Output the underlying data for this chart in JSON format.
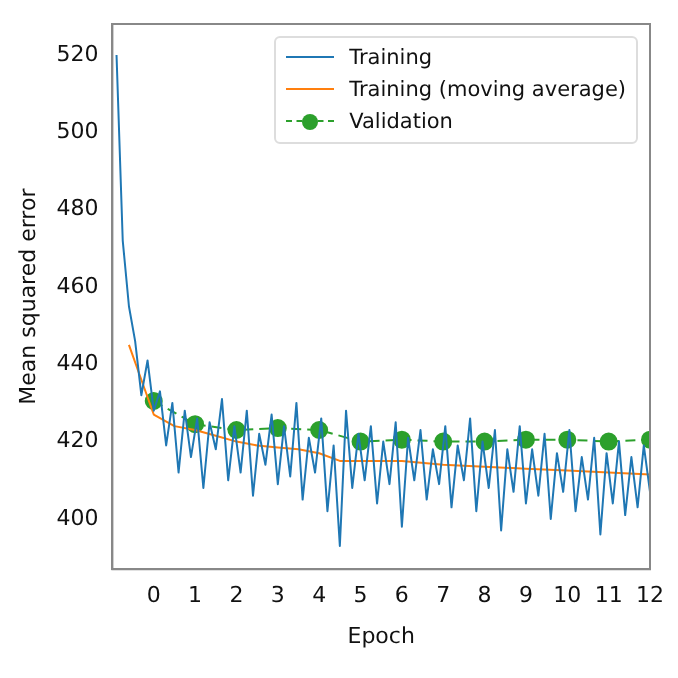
{
  "chart_data": {
    "type": "line",
    "xlabel": "Epoch",
    "ylabel": "Mean squared error",
    "xlim": [
      -1,
      12
    ],
    "xticks": [
      0,
      1,
      2,
      3,
      4,
      5,
      6,
      7,
      8,
      9,
      10,
      11,
      12
    ],
    "ylim": [
      387,
      528
    ],
    "yticks": [
      400,
      420,
      440,
      460,
      480,
      500,
      520
    ],
    "grid": false,
    "legend": "top right",
    "series": [
      {
        "name": "Training",
        "color": "#1f77b4",
        "marker": "none",
        "line_style": "solid",
        "x": [
          -0.9,
          -0.75,
          -0.6,
          -0.45,
          -0.3,
          -0.15,
          0,
          0.15,
          0.3,
          0.45,
          0.6,
          0.75,
          0.9,
          1.05,
          1.2,
          1.35,
          1.5,
          1.65,
          1.8,
          1.95,
          2.1,
          2.25,
          2.4,
          2.55,
          2.7,
          2.85,
          3.0,
          3.15,
          3.3,
          3.45,
          3.6,
          3.75,
          3.9,
          4.05,
          4.2,
          4.35,
          4.5,
          4.65,
          4.8,
          4.95,
          5.1,
          5.25,
          5.4,
          5.55,
          5.7,
          5.85,
          6.0,
          6.15,
          6.3,
          6.45,
          6.6,
          6.75,
          6.9,
          7.05,
          7.2,
          7.35,
          7.5,
          7.65,
          7.8,
          7.95,
          8.1,
          8.25,
          8.4,
          8.55,
          8.7,
          8.85,
          9.0,
          9.15,
          9.3,
          9.45,
          9.6,
          9.75,
          9.9,
          10.05,
          10.2,
          10.35,
          10.5,
          10.65,
          10.8,
          10.95,
          11.1,
          11.25,
          11.4,
          11.55,
          11.7,
          11.85,
          12.0
        ],
        "values": [
          520,
          472,
          455,
          446,
          432,
          441,
          428,
          433,
          419,
          430,
          412,
          428,
          416,
          426,
          408,
          425,
          418,
          431,
          410,
          424,
          412,
          428,
          406,
          422,
          414,
          427,
          409,
          424,
          411,
          430,
          405,
          421,
          412,
          426,
          402,
          419,
          393,
          428,
          408,
          422,
          410,
          424,
          404,
          420,
          409,
          425,
          398,
          421,
          410,
          423,
          405,
          418,
          409,
          424,
          403,
          419,
          410,
          426,
          402,
          420,
          408,
          423,
          397,
          418,
          407,
          424,
          404,
          418,
          406,
          422,
          400,
          417,
          407,
          423,
          402,
          416,
          405,
          421,
          396,
          417,
          404,
          420,
          401,
          416,
          403,
          419,
          407
        ]
      },
      {
        "name": "Training (moving average)",
        "color": "#ff7f0e",
        "marker": "none",
        "line_style": "solid",
        "x": [
          -0.6,
          -0.3,
          0,
          0.5,
          1,
          1.5,
          2,
          2.5,
          3,
          3.5,
          4,
          4.5,
          5,
          6,
          7,
          8,
          9,
          10,
          11,
          12
        ],
        "values": [
          445,
          436,
          427,
          424,
          423,
          421.5,
          420,
          419,
          418.5,
          418,
          417,
          415,
          415,
          415,
          414,
          413.5,
          413,
          412.5,
          412,
          411.5
        ]
      },
      {
        "name": "Validation",
        "color": "#2ca02c",
        "marker": "circle",
        "line_style": "dashed",
        "x": [
          0,
          1,
          2,
          3,
          4,
          5,
          6,
          7,
          8,
          9,
          10,
          11,
          12
        ],
        "values": [
          430.5,
          424.5,
          423,
          423.5,
          423,
          420,
          420.5,
          420,
          420,
          420.5,
          420.5,
          420,
          420.5
        ]
      }
    ]
  }
}
